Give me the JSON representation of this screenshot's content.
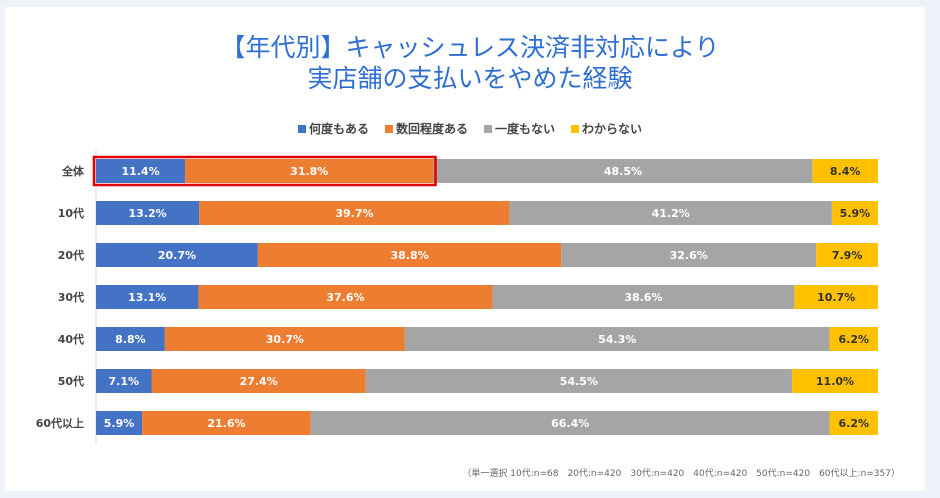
{
  "chart_data": {
    "type": "bar",
    "stacked": true,
    "orientation": "horizontal",
    "title_lines": [
      "【年代別】キャッシュレス決済非対応により",
      "実店舗の支払いをやめた経験"
    ],
    "categories": [
      "全体",
      "10代",
      "20代",
      "30代",
      "40代",
      "50代",
      "60代以上"
    ],
    "series": [
      {
        "name": "何度もある",
        "color": "#4472c4",
        "values": [
          11.4,
          13.2,
          20.7,
          13.1,
          8.8,
          7.1,
          5.9
        ]
      },
      {
        "name": "数回程度ある",
        "color": "#ed7d31",
        "values": [
          31.8,
          39.7,
          38.8,
          37.6,
          30.7,
          27.4,
          21.6
        ]
      },
      {
        "name": "一度もない",
        "color": "#a5a5a5",
        "values": [
          48.5,
          41.2,
          32.6,
          38.6,
          54.3,
          54.5,
          66.4
        ]
      },
      {
        "name": "わからない",
        "color": "#ffc000",
        "values": [
          8.4,
          5.9,
          7.9,
          10.7,
          6.2,
          11.0,
          6.2
        ]
      }
    ],
    "value_format": "percent_1dp",
    "legend_position": "top",
    "grid": false,
    "highlight": {
      "category": "全体",
      "series": [
        "何度もある",
        "数回程度ある"
      ],
      "color": "#e00000"
    },
    "note": "（単一選択 10代:n=68　20代:n=420　30代:n=420　40代:n=420　50代:n=420　60代以上:n=357）"
  }
}
